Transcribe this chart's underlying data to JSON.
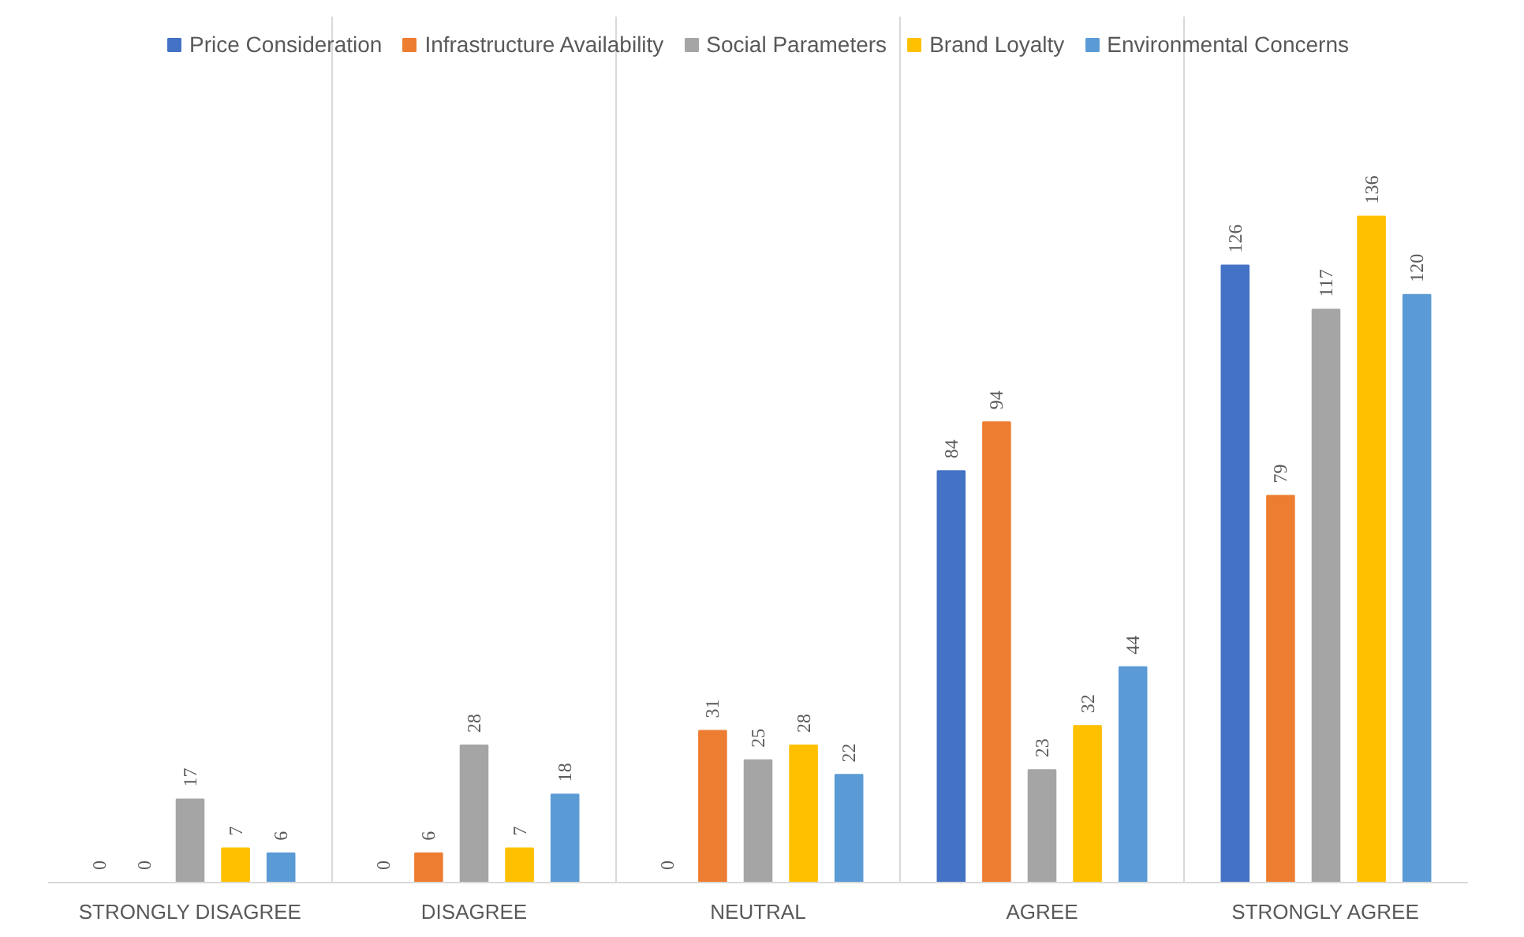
{
  "chart_data": {
    "type": "bar",
    "categories": [
      "STRONGLY DISAGREE",
      "DISAGREE",
      "NEUTRAL",
      "AGREE",
      "STRONGLY AGREE"
    ],
    "series": [
      {
        "name": "Price Consideration",
        "color": "#4472c4",
        "values": [
          0,
          0,
          0,
          84,
          126
        ]
      },
      {
        "name": "Infrastructure Availability",
        "color": "#ed7d31",
        "values": [
          0,
          6,
          31,
          94,
          79
        ]
      },
      {
        "name": "Social Parameters",
        "color": "#a5a5a5",
        "values": [
          17,
          28,
          25,
          23,
          117
        ]
      },
      {
        "name": "Brand Loyalty",
        "color": "#ffc000",
        "values": [
          7,
          7,
          28,
          32,
          136
        ]
      },
      {
        "name": "Environmental Concerns",
        "color": "#5b9bd5",
        "values": [
          6,
          18,
          22,
          44,
          120
        ]
      }
    ],
    "data_labels": true,
    "legend": "top",
    "grid": "x"
  }
}
